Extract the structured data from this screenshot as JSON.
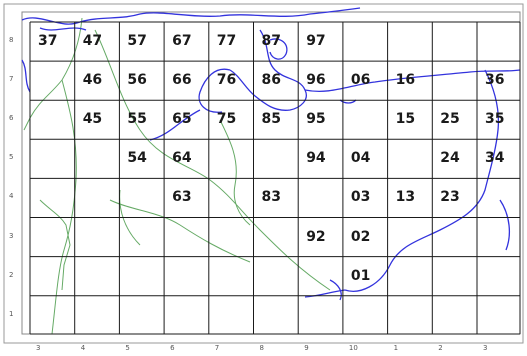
{
  "map": {
    "grid_labels": [
      {
        "id": "37",
        "col": 0,
        "row": 0
      },
      {
        "id": "47",
        "col": 1,
        "row": 0
      },
      {
        "id": "57",
        "col": 2,
        "row": 0
      },
      {
        "id": "67",
        "col": 3,
        "row": 0
      },
      {
        "id": "77",
        "col": 4,
        "row": 0
      },
      {
        "id": "87",
        "col": 5,
        "row": 0
      },
      {
        "id": "97",
        "col": 6,
        "row": 0
      },
      {
        "id": "46",
        "col": 1,
        "row": 1
      },
      {
        "id": "56",
        "col": 2,
        "row": 1
      },
      {
        "id": "66",
        "col": 3,
        "row": 1
      },
      {
        "id": "76",
        "col": 4,
        "row": 1
      },
      {
        "id": "86",
        "col": 5,
        "row": 1
      },
      {
        "id": "96",
        "col": 6,
        "row": 1
      },
      {
        "id": "06",
        "col": 7,
        "row": 1
      },
      {
        "id": "16",
        "col": 8,
        "row": 1
      },
      {
        "id": "36",
        "col": 10,
        "row": 1
      },
      {
        "id": "45",
        "col": 1,
        "row": 2
      },
      {
        "id": "55",
        "col": 2,
        "row": 2
      },
      {
        "id": "65",
        "col": 3,
        "row": 2
      },
      {
        "id": "75",
        "col": 4,
        "row": 2
      },
      {
        "id": "85",
        "col": 5,
        "row": 2
      },
      {
        "id": "95",
        "col": 6,
        "row": 2
      },
      {
        "id": "15",
        "col": 8,
        "row": 2
      },
      {
        "id": "25",
        "col": 9,
        "row": 2
      },
      {
        "id": "35",
        "col": 10,
        "row": 2
      },
      {
        "id": "54",
        "col": 2,
        "row": 3
      },
      {
        "id": "64",
        "col": 3,
        "row": 3
      },
      {
        "id": "94",
        "col": 6,
        "row": 3
      },
      {
        "id": "04",
        "col": 7,
        "row": 3
      },
      {
        "id": "24",
        "col": 9,
        "row": 3
      },
      {
        "id": "34",
        "col": 10,
        "row": 3
      },
      {
        "id": "63",
        "col": 3,
        "row": 4
      },
      {
        "id": "83",
        "col": 5,
        "row": 4
      },
      {
        "id": "03",
        "col": 7,
        "row": 4
      },
      {
        "id": "13",
        "col": 8,
        "row": 4
      },
      {
        "id": "23",
        "col": 9,
        "row": 4
      },
      {
        "id": "92",
        "col": 6,
        "row": 5
      },
      {
        "id": "02",
        "col": 7,
        "row": 5
      },
      {
        "id": "01",
        "col": 7,
        "row": 6
      }
    ],
    "bottom_ticks": [
      "3",
      "4",
      "5",
      "6",
      "7",
      "8",
      "9",
      "10",
      "1",
      "2",
      "3"
    ],
    "left_ticks": [
      "8",
      "7",
      "6",
      "5",
      "4",
      "3",
      "2",
      "1"
    ],
    "colors": {
      "grid": "#1a1a1a",
      "coast": "#3333dd",
      "border": "#66aa66",
      "label": "#1a1a1a"
    }
  }
}
